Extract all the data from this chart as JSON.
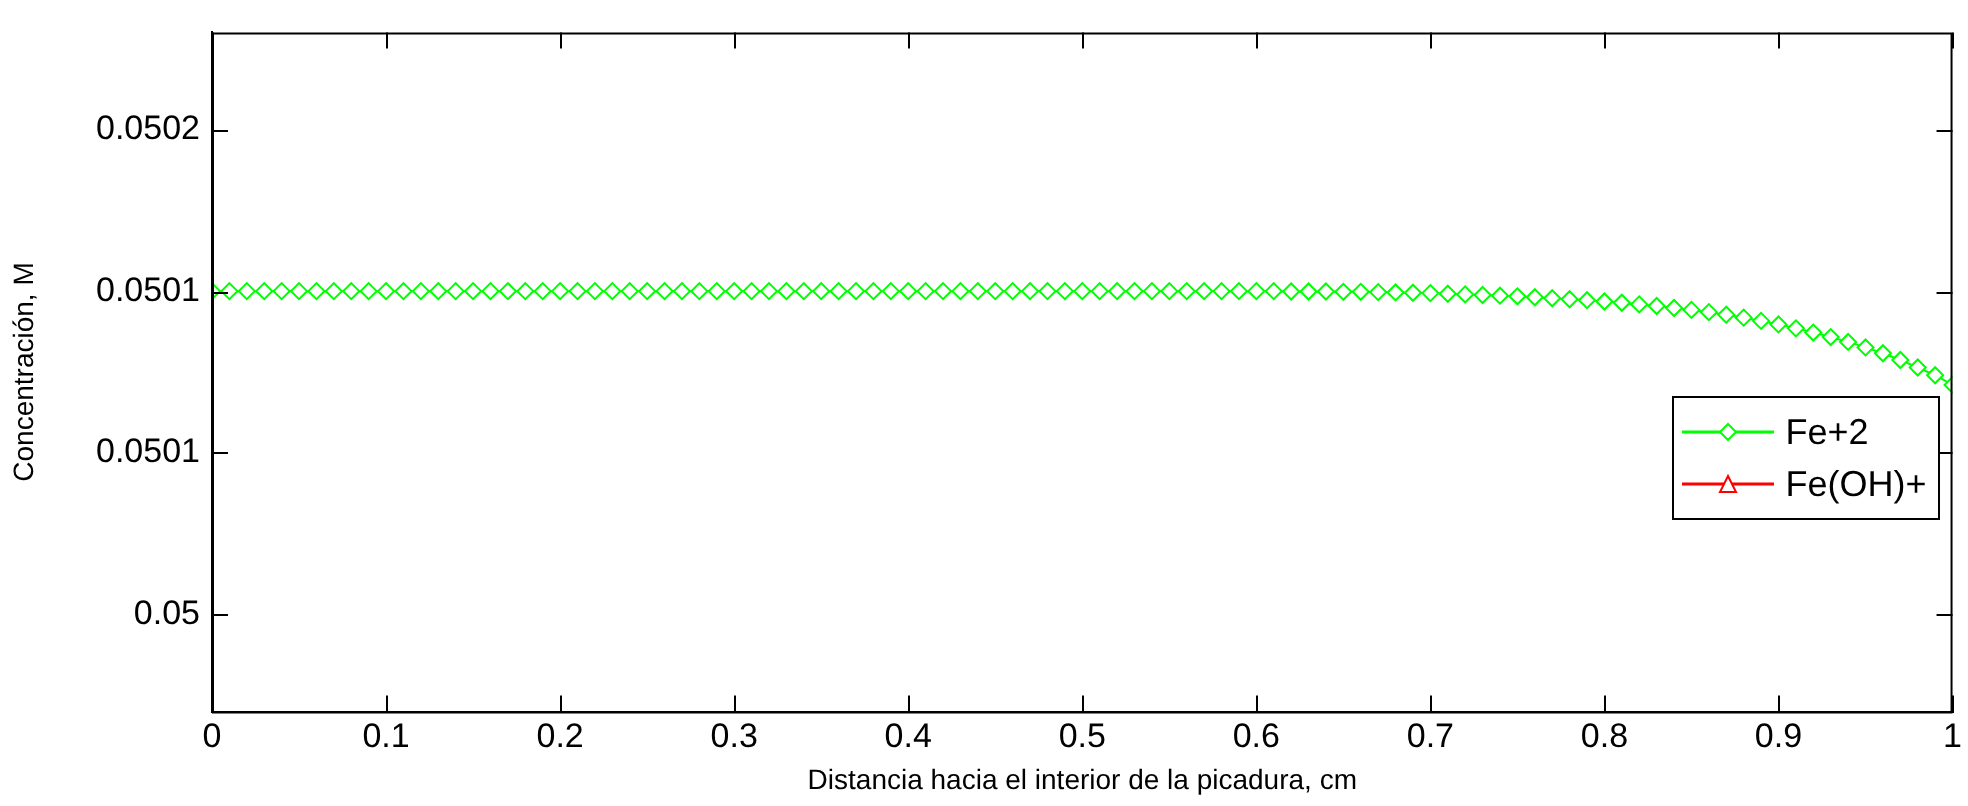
{
  "chart_data": {
    "type": "line",
    "xlabel": "Distancia hacia el interior de la picadura, cm",
    "ylabel": "Concentración, M",
    "x": [
      0,
      0.01,
      0.02,
      0.03,
      0.04,
      0.05,
      0.06,
      0.07,
      0.08,
      0.09,
      0.1,
      0.11,
      0.12,
      0.13,
      0.14,
      0.15,
      0.16,
      0.17,
      0.18,
      0.19,
      0.2,
      0.21,
      0.22,
      0.23,
      0.24,
      0.25,
      0.26,
      0.27,
      0.28,
      0.29,
      0.3,
      0.31,
      0.32,
      0.33,
      0.34,
      0.35,
      0.36,
      0.37,
      0.38,
      0.39,
      0.4,
      0.41,
      0.42,
      0.43,
      0.44,
      0.45,
      0.46,
      0.47,
      0.48,
      0.49,
      0.5,
      0.51,
      0.52,
      0.53,
      0.54,
      0.55,
      0.56,
      0.57,
      0.58,
      0.59,
      0.6,
      0.61,
      0.62,
      0.63,
      0.64,
      0.65,
      0.66,
      0.67,
      0.68,
      0.69,
      0.7,
      0.71,
      0.72,
      0.73,
      0.74,
      0.75,
      0.76,
      0.77,
      0.78,
      0.79,
      0.8,
      0.81,
      0.82,
      0.83,
      0.84,
      0.85,
      0.86,
      0.87,
      0.88,
      0.89,
      0.9,
      0.91,
      0.92,
      0.93,
      0.94,
      0.95,
      0.96,
      0.97,
      0.98,
      0.99,
      1
    ],
    "series": [
      {
        "name": "Fe+2",
        "color": "#00ff00",
        "marker": "diamond",
        "values": [
          0.0501,
          0.0501,
          0.0501,
          0.0501,
          0.0501,
          0.0501,
          0.0501,
          0.0501,
          0.0501,
          0.0501,
          0.0501,
          0.0501,
          0.0501,
          0.0501,
          0.0501,
          0.0501,
          0.0501,
          0.0501,
          0.0501,
          0.0501,
          0.0501,
          0.0501,
          0.0501,
          0.0501,
          0.0501,
          0.0501,
          0.0501,
          0.0501,
          0.0501,
          0.0501,
          0.0501,
          0.0501,
          0.0501,
          0.0501,
          0.0501,
          0.0501,
          0.0501,
          0.0501,
          0.0501,
          0.0501,
          0.0501,
          0.0501,
          0.0501,
          0.0501,
          0.0501,
          0.0501,
          0.0501,
          0.0501,
          0.0501,
          0.0501,
          0.0501,
          0.0501,
          0.0501,
          0.0501,
          0.0501,
          0.0501,
          0.0501,
          0.0501,
          0.0501,
          0.0501,
          0.0501,
          0.0501,
          0.0500999,
          0.0500999,
          0.0500999,
          0.0500998,
          0.0500998,
          0.0500997,
          0.0500996,
          0.0500995,
          0.0500994,
          0.0500992,
          0.050099,
          0.0500988,
          0.0500986,
          0.0500984,
          0.0500981,
          0.0500978,
          0.0500975,
          0.0500972,
          0.0500968,
          0.0500964,
          0.0500959,
          0.0500954,
          0.0500948,
          0.0500942,
          0.0500935,
          0.0500927,
          0.0500918,
          0.0500908,
          0.0500897,
          0.0500885,
          0.0500872,
          0.0500858,
          0.0500843,
          0.0500826,
          0.0500808,
          0.0500787,
          0.0500764,
          0.050074,
          0.050071
        ]
      },
      {
        "name": "Fe(OH)+",
        "color": "#ff0000",
        "marker": "triangle",
        "values": [
          null,
          null,
          null,
          null,
          null,
          null,
          null,
          null,
          null,
          null,
          null,
          null,
          null,
          null,
          null,
          null,
          null,
          null,
          null,
          null,
          null,
          null,
          null,
          null,
          null,
          null,
          null,
          null,
          null,
          null,
          null,
          null,
          null,
          null,
          null,
          null,
          null,
          null,
          null,
          null,
          null,
          null,
          null,
          null,
          null,
          null,
          null,
          null,
          null,
          null,
          null,
          null,
          null,
          null,
          null,
          null,
          null,
          null,
          null,
          null,
          null,
          null,
          null,
          null,
          null,
          null,
          null,
          null,
          null,
          null,
          null,
          null,
          null,
          null,
          null,
          null,
          null,
          null,
          null,
          null,
          null,
          null,
          null,
          null,
          null,
          null,
          null,
          null,
          null,
          null,
          null,
          null,
          null,
          null,
          null,
          null,
          null,
          null,
          null,
          null,
          null
        ]
      }
    ],
    "xlim": [
      0,
      1
    ],
    "xticks": [
      0,
      0.1,
      0.2,
      0.3,
      0.4,
      0.5,
      0.6,
      0.7,
      0.8,
      0.9,
      1
    ],
    "ylim": [
      0.04997,
      0.05018
    ],
    "yticks": [
      {
        "value": 0.05,
        "label": "0.05"
      },
      {
        "value": 0.05005,
        "label": "0.0501"
      },
      {
        "value": 0.0501,
        "label": "0.0501"
      },
      {
        "value": 0.05015,
        "label": "0.0502"
      }
    ],
    "grid": false,
    "legend": "right",
    "line_style": "solid"
  }
}
